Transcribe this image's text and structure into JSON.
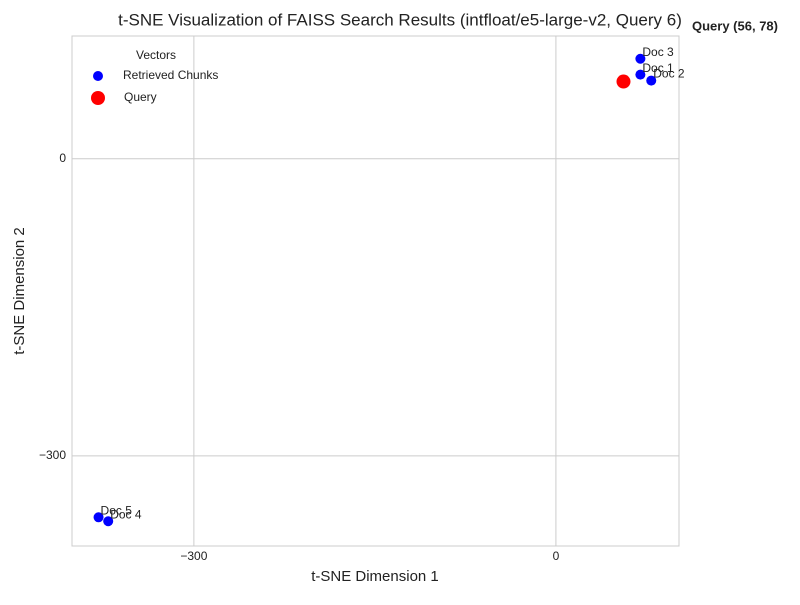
{
  "chart_data": {
    "type": "scatter",
    "title": "t-SNE Visualization of FAISS Search Results (intfloat/e5-large-v2, Query 6)",
    "xlabel": "t-SNE Dimension 1",
    "ylabel": "t-SNE Dimension 2",
    "xlim": [
      -401,
      102
    ],
    "ylim": [
      -391,
      124
    ],
    "xticks": [
      {
        "value": -300,
        "label": "−300"
      },
      0
    ],
    "yticks": [
      {
        "value": -300,
        "label": "−300"
      },
      0
    ],
    "grid": true,
    "legend_title": "Vectors",
    "legend_position": "upper-left",
    "series": [
      {
        "name": "Retrieved Chunks",
        "color": "#0000ff",
        "x": [
          70,
          79,
          70,
          -371,
          -379
        ],
        "values": [
          85,
          79,
          101,
          -366,
          -362
        ],
        "point_labels": [
          "Doc 1",
          "Doc 2",
          "Doc 3",
          "Doc 4",
          "Doc 5"
        ]
      },
      {
        "name": "Query",
        "color": "#ff0000",
        "x": [
          56
        ],
        "values": [
          78
        ]
      }
    ],
    "annotation": "Query (56, 78)"
  }
}
